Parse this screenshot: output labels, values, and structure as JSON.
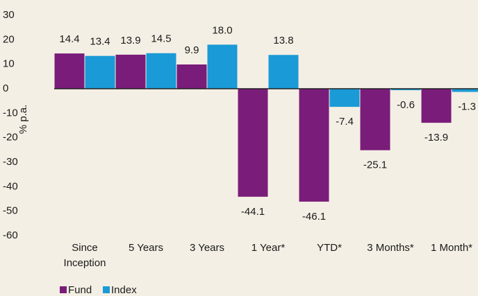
{
  "chart_data": {
    "type": "bar",
    "y_label": "% p.a.",
    "categories": [
      "Since Inception",
      "5 Years",
      "3 Years",
      "1 Year*",
      "YTD*",
      "3 Months*",
      "1 Month*"
    ],
    "series": [
      {
        "name": "Fund",
        "color": "#7a1c79",
        "values": [
          14.4,
          13.9,
          9.9,
          -44.1,
          -46.1,
          -25.1,
          -13.9
        ],
        "value_labels": [
          "14.4",
          "13.9",
          "9.9",
          "-44.1",
          "-46.1",
          "-25.1",
          "-13.9"
        ]
      },
      {
        "name": "Index",
        "color": "#1a9ad6",
        "values": [
          13.4,
          14.5,
          18.0,
          13.8,
          -7.4,
          -0.6,
          -1.3
        ],
        "value_labels": [
          "13.4",
          "14.5",
          "18.0",
          "13.8",
          "-7.4",
          "-0.6",
          "-1.3"
        ]
      }
    ],
    "ylim": [
      -60,
      30
    ],
    "yticks": [
      -60,
      -50,
      -40,
      -30,
      -20,
      -10,
      0,
      10,
      20,
      30
    ],
    "legend": "bottom-left"
  }
}
